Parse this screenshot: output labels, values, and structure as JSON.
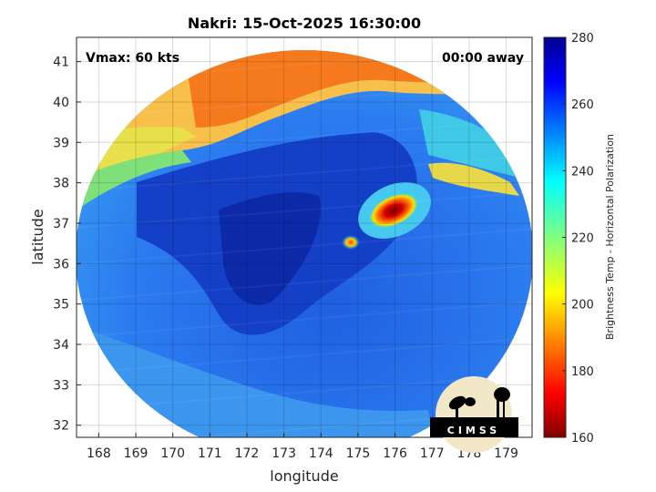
{
  "title": "Nakri: 15-Oct-2025 16:30:00",
  "vmax_label": "Vmax: 60 kts",
  "time_label": "00:00 away",
  "xlabel": "longitude",
  "ylabel": "latitude",
  "x_ticks": [
    "168",
    "169",
    "170",
    "171",
    "172",
    "173",
    "174",
    "175",
    "176",
    "177",
    "178",
    "179"
  ],
  "y_ticks": [
    "32",
    "33",
    "34",
    "35",
    "36",
    "37",
    "38",
    "39",
    "40",
    "41"
  ],
  "colorbar": {
    "label": "Brightness Temp - Horizontal Polarization",
    "ticks": [
      "160",
      "180",
      "200",
      "220",
      "240",
      "260",
      "280"
    ],
    "min": 160,
    "max": 280
  },
  "logo": {
    "text": "CIMSS"
  },
  "map_extent": {
    "lon": [
      167.4,
      179.7
    ],
    "lat": [
      31.7,
      41.6
    ]
  }
}
